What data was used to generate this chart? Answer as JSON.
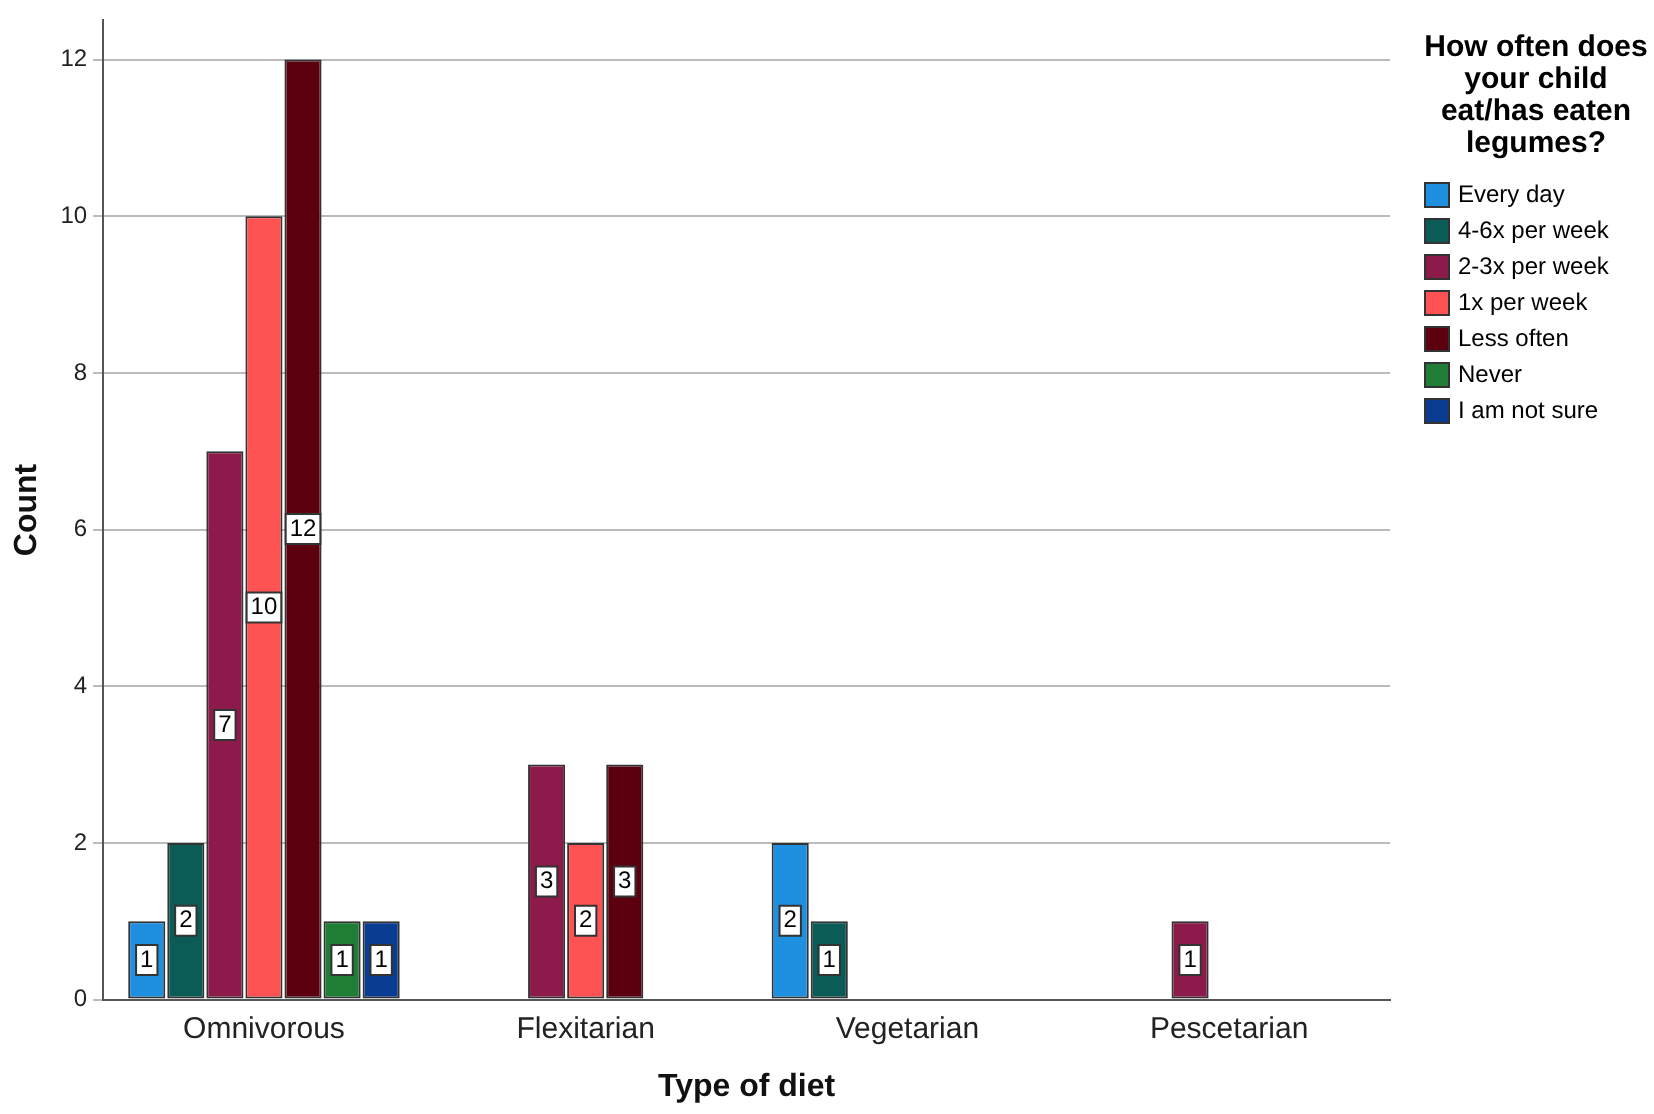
{
  "chart_data": {
    "type": "bar",
    "xlabel": "Type of diet",
    "ylabel": "Count",
    "legend_title": "How often does your child eat/has eaten legumes?",
    "categories": [
      "Omnivorous",
      "Flexitarian",
      "Vegetarian",
      "Pescetarian"
    ],
    "series": [
      {
        "name": "Every day",
        "color": "#1f8fe0",
        "values": [
          1,
          0,
          2,
          0
        ],
        "value_labels": [
          "1",
          null,
          "2",
          null
        ]
      },
      {
        "name": "4-6x per week",
        "color": "#0b5c57",
        "values": [
          2,
          0,
          1,
          0
        ],
        "value_labels": [
          "2",
          null,
          "1",
          null
        ]
      },
      {
        "name": "2-3x per week",
        "color": "#8c1a4b",
        "values": [
          7,
          3,
          0,
          1
        ],
        "value_labels": [
          "7",
          "3",
          null,
          "1"
        ]
      },
      {
        "name": "1x per week",
        "color": "#ff5252",
        "values": [
          10,
          2,
          0,
          0
        ],
        "value_labels": [
          "10",
          "2",
          null,
          null
        ]
      },
      {
        "name": "Less often",
        "color": "#5c0010",
        "values": [
          12,
          3,
          0,
          0
        ],
        "value_labels": [
          "12",
          "3",
          null,
          null
        ]
      },
      {
        "name": "Never",
        "color": "#1f7d35",
        "values": [
          1,
          0,
          0,
          0
        ],
        "value_labels": [
          "1",
          null,
          null,
          null
        ]
      },
      {
        "name": "I am not sure",
        "color": "#0a3c91",
        "values": [
          1,
          0,
          0,
          0
        ],
        "value_labels": [
          "1",
          null,
          null,
          null
        ]
      }
    ],
    "ylim": [
      0,
      12.5
    ],
    "yticks": [
      0,
      2,
      4,
      6,
      8,
      10,
      12
    ],
    "grid": "y",
    "legend": "right"
  }
}
